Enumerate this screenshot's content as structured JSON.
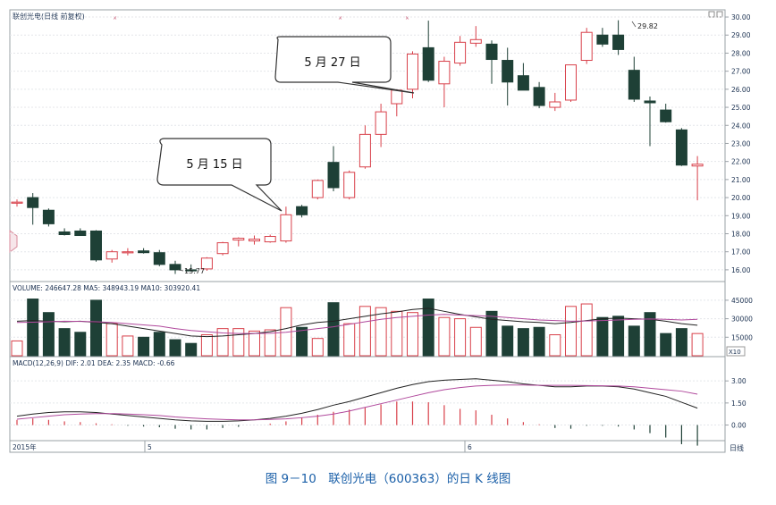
{
  "header": {
    "title": "联创光电(日线 前复权)",
    "volume_line": "VOLUME: 246647.28  MA5: 348943.19  MA10: 303920.41",
    "macd_line": "MACD(12,26,9)  DIF: 2.01  DEA: 2.35  MACD: -0.66"
  },
  "annotations": {
    "callout_may27": "5 月 27 日",
    "callout_may15": "5 月 15 日",
    "high_label": "29.82",
    "low_label": "15.77",
    "date_2015": "2015年",
    "date_5": "5",
    "date_6": "6",
    "period_label": "日线",
    "vol_unit": "X10"
  },
  "caption": "图 9－10　联创光电（600363）的日 K 线图",
  "colors": {
    "up": "#d8404a",
    "down": "#1e4036",
    "accent": "#1a5fa8",
    "ma_purple": "#b0489c"
  },
  "chart_data": [
    {
      "type": "candlestick",
      "title": "联创光电(日线 前复权)",
      "ylim": [
        15.5,
        30.2
      ],
      "y_ticks": [
        16.0,
        17.0,
        18.0,
        19.0,
        20.0,
        21.0,
        22.0,
        23.0,
        24.0,
        25.0,
        26.0,
        27.0,
        28.0,
        29.0,
        30.0
      ],
      "candles": [
        {
          "o": 19.75,
          "h": 19.9,
          "l": 19.5,
          "c": 19.75
        },
        {
          "o": 20.0,
          "h": 20.25,
          "l": 18.5,
          "c": 19.45
        },
        {
          "o": 19.3,
          "h": 19.4,
          "l": 18.4,
          "c": 18.55
        },
        {
          "o": 18.1,
          "h": 18.3,
          "l": 17.9,
          "c": 17.95
        },
        {
          "o": 18.15,
          "h": 18.3,
          "l": 17.9,
          "c": 17.9
        },
        {
          "o": 18.15,
          "h": 18.2,
          "l": 16.45,
          "c": 16.55
        },
        {
          "o": 16.6,
          "h": 17.1,
          "l": 16.4,
          "c": 17.0
        },
        {
          "o": 16.95,
          "h": 17.2,
          "l": 16.8,
          "c": 17.0
        },
        {
          "o": 17.05,
          "h": 17.2,
          "l": 16.9,
          "c": 16.95
        },
        {
          "o": 16.95,
          "h": 17.1,
          "l": 16.2,
          "c": 16.3
        },
        {
          "o": 16.3,
          "h": 16.5,
          "l": 15.77,
          "c": 16.0
        },
        {
          "o": 16.0,
          "h": 16.3,
          "l": 15.9,
          "c": 15.95
        },
        {
          "o": 16.05,
          "h": 16.7,
          "l": 15.95,
          "c": 16.65
        },
        {
          "o": 16.9,
          "h": 17.55,
          "l": 16.8,
          "c": 17.5
        },
        {
          "o": 17.65,
          "h": 17.8,
          "l": 17.3,
          "c": 17.75
        },
        {
          "o": 17.6,
          "h": 17.9,
          "l": 17.4,
          "c": 17.7
        },
        {
          "o": 17.55,
          "h": 17.95,
          "l": 17.5,
          "c": 17.85
        },
        {
          "o": 17.6,
          "h": 19.5,
          "l": 17.5,
          "c": 19.05
        },
        {
          "o": 19.5,
          "h": 19.6,
          "l": 18.9,
          "c": 19.05
        },
        {
          "o": 20.0,
          "h": 21.0,
          "l": 19.9,
          "c": 20.95
        },
        {
          "o": 21.95,
          "h": 22.85,
          "l": 20.35,
          "c": 20.55
        },
        {
          "o": 20.0,
          "h": 21.5,
          "l": 19.9,
          "c": 21.4
        },
        {
          "o": 21.7,
          "h": 24.0,
          "l": 21.6,
          "c": 23.5
        },
        {
          "o": 23.5,
          "h": 25.2,
          "l": 22.8,
          "c": 24.75
        },
        {
          "o": 25.2,
          "h": 26.0,
          "l": 24.5,
          "c": 25.95
        },
        {
          "o": 26.0,
          "h": 28.1,
          "l": 25.5,
          "c": 27.95
        },
        {
          "o": 28.3,
          "h": 29.8,
          "l": 26.4,
          "c": 26.5
        },
        {
          "o": 26.3,
          "h": 27.8,
          "l": 25.0,
          "c": 27.55
        },
        {
          "o": 27.45,
          "h": 28.95,
          "l": 27.3,
          "c": 28.6
        },
        {
          "o": 28.55,
          "h": 29.5,
          "l": 28.35,
          "c": 28.75
        },
        {
          "o": 28.5,
          "h": 28.7,
          "l": 26.3,
          "c": 27.65
        },
        {
          "o": 27.6,
          "h": 28.3,
          "l": 25.1,
          "c": 26.4
        },
        {
          "o": 26.75,
          "h": 27.45,
          "l": 25.95,
          "c": 25.95
        },
        {
          "o": 26.1,
          "h": 26.4,
          "l": 24.95,
          "c": 25.1
        },
        {
          "o": 25.0,
          "h": 25.8,
          "l": 24.8,
          "c": 25.3
        },
        {
          "o": 25.4,
          "h": 27.3,
          "l": 25.3,
          "c": 27.35
        },
        {
          "o": 27.6,
          "h": 29.4,
          "l": 27.4,
          "c": 29.15
        },
        {
          "o": 29.0,
          "h": 29.4,
          "l": 28.35,
          "c": 28.5
        },
        {
          "o": 29.0,
          "h": 29.82,
          "l": 27.9,
          "c": 28.2
        },
        {
          "o": 27.05,
          "h": 27.8,
          "l": 25.3,
          "c": 25.45
        },
        {
          "o": 25.35,
          "h": 25.6,
          "l": 22.85,
          "c": 25.25
        },
        {
          "o": 24.85,
          "h": 25.2,
          "l": 24.15,
          "c": 24.2
        },
        {
          "o": 23.75,
          "h": 23.85,
          "l": 21.75,
          "c": 21.8
        },
        {
          "o": 21.75,
          "h": 22.3,
          "l": 19.85,
          "c": 21.85
        }
      ]
    },
    {
      "type": "bar",
      "title": "VOLUME",
      "ylim": [
        0,
        50000
      ],
      "y_ticks": [
        15000,
        30000,
        45000
      ],
      "values": [
        12000,
        46000,
        35000,
        22000,
        19000,
        45000,
        26000,
        16000,
        15000,
        19000,
        13000,
        10000,
        17000,
        22000,
        22000,
        20000,
        21000,
        39000,
        23000,
        14000,
        43000,
        26000,
        40000,
        39000,
        36000,
        35000,
        46000,
        31000,
        30000,
        23000,
        36000,
        24000,
        22000,
        23000,
        17000,
        40000,
        42000,
        31000,
        32000,
        24000,
        35000,
        18000,
        22000,
        18000
      ],
      "series": [
        {
          "name": "MA5",
          "values": [
            28000,
            28500,
            28000,
            27500,
            28000,
            27000,
            26000,
            24000,
            22000,
            20000,
            18000,
            16000,
            15500,
            16000,
            17000,
            18000,
            19500,
            22000,
            25000,
            27000,
            28000,
            30000,
            32000,
            34000,
            35500,
            37500,
            38500,
            36000,
            33500,
            31500,
            29500,
            28500,
            27500,
            27000,
            26000,
            27000,
            28500,
            30000,
            30500,
            30000,
            29500,
            28000,
            26000,
            24700
          ]
        },
        {
          "name": "MA10",
          "values": [
            27000,
            27200,
            27500,
            28000,
            27800,
            27500,
            27000,
            26000,
            25000,
            24000,
            22000,
            20500,
            19500,
            18500,
            18000,
            18000,
            18200,
            19000,
            20500,
            22000,
            23500,
            25500,
            27500,
            29500,
            31000,
            32000,
            33000,
            33500,
            33000,
            32500,
            32000,
            31000,
            30000,
            29000,
            28500,
            28000,
            28200,
            28500,
            29000,
            29500,
            29800,
            29500,
            29000,
            29500
          ]
        }
      ]
    },
    {
      "type": "line",
      "title": "MACD(12,26,9)",
      "ylim": [
        -1.0,
        3.8
      ],
      "y_ticks": [
        0.0,
        1.5,
        3.0
      ],
      "series": [
        {
          "name": "DIF",
          "values": [
            0.6,
            0.75,
            0.85,
            0.9,
            0.9,
            0.85,
            0.75,
            0.65,
            0.55,
            0.45,
            0.35,
            0.28,
            0.25,
            0.25,
            0.28,
            0.35,
            0.45,
            0.6,
            0.8,
            1.05,
            1.35,
            1.6,
            1.9,
            2.2,
            2.5,
            2.75,
            2.95,
            3.05,
            3.1,
            3.15,
            3.05,
            2.95,
            2.8,
            2.7,
            2.6,
            2.6,
            2.65,
            2.65,
            2.6,
            2.45,
            2.2,
            1.95,
            1.55,
            1.15
          ]
        },
        {
          "name": "DEA",
          "values": [
            0.4,
            0.5,
            0.6,
            0.7,
            0.75,
            0.78,
            0.78,
            0.75,
            0.7,
            0.65,
            0.55,
            0.48,
            0.42,
            0.38,
            0.35,
            0.35,
            0.38,
            0.42,
            0.5,
            0.6,
            0.75,
            0.95,
            1.2,
            1.45,
            1.7,
            1.95,
            2.2,
            2.4,
            2.55,
            2.65,
            2.7,
            2.72,
            2.72,
            2.7,
            2.7,
            2.7,
            2.68,
            2.67,
            2.65,
            2.6,
            2.5,
            2.4,
            2.3,
            2.1
          ]
        }
      ],
      "histogram": [
        0.35,
        0.45,
        0.35,
        0.25,
        0.2,
        0.12,
        0.05,
        -0.05,
        -0.1,
        -0.15,
        -0.25,
        -0.3,
        -0.3,
        -0.2,
        -0.12,
        0.0,
        0.1,
        0.25,
        0.5,
        0.7,
        0.9,
        1.05,
        1.2,
        1.4,
        1.6,
        1.6,
        1.55,
        1.35,
        1.1,
        1.0,
        0.7,
        0.45,
        0.2,
        0.05,
        -0.2,
        -0.25,
        -0.05,
        -0.05,
        -0.1,
        -0.3,
        -0.55,
        -0.85,
        -1.3,
        -1.4
      ]
    }
  ]
}
